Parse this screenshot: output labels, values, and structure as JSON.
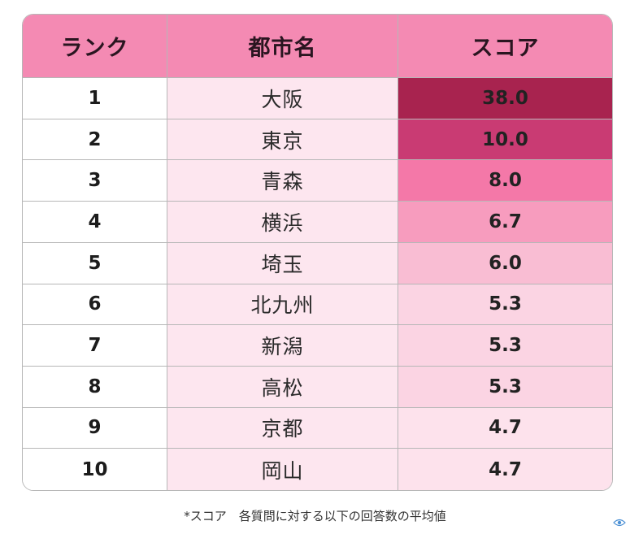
{
  "chart_data": {
    "type": "table",
    "columns": [
      "ランク",
      "都市名",
      "スコア"
    ],
    "rows": [
      {
        "rank": "1",
        "city": "大阪",
        "score": "38.0"
      },
      {
        "rank": "2",
        "city": "東京",
        "score": "10.0"
      },
      {
        "rank": "3",
        "city": "青森",
        "score": "8.0"
      },
      {
        "rank": "4",
        "city": "横浜",
        "score": "6.7"
      },
      {
        "rank": "5",
        "city": "埼玉",
        "score": "6.0"
      },
      {
        "rank": "6",
        "city": "北九州",
        "score": "5.3"
      },
      {
        "rank": "7",
        "city": "新潟",
        "score": "5.3"
      },
      {
        "rank": "8",
        "city": "高松",
        "score": "5.3"
      },
      {
        "rank": "9",
        "city": "京都",
        "score": "4.7"
      },
      {
        "rank": "10",
        "city": "岡山",
        "score": "4.7"
      }
    ],
    "score_colors": [
      "#a8234f",
      "#c93b73",
      "#f478a8",
      "#f79cbe",
      "#f9bdd3",
      "#fbd4e3",
      "#fbd4e3",
      "#fbd4e3",
      "#fde2ec",
      "#fde2ec"
    ]
  },
  "footnote": "*スコア　各質問に対する以下の回答数の平均値",
  "colors": {
    "header": "#f48ab3",
    "city_column": "#fde6ef",
    "border": "#b7b7b7"
  },
  "icons": {
    "corner": "eye-logo-icon"
  }
}
